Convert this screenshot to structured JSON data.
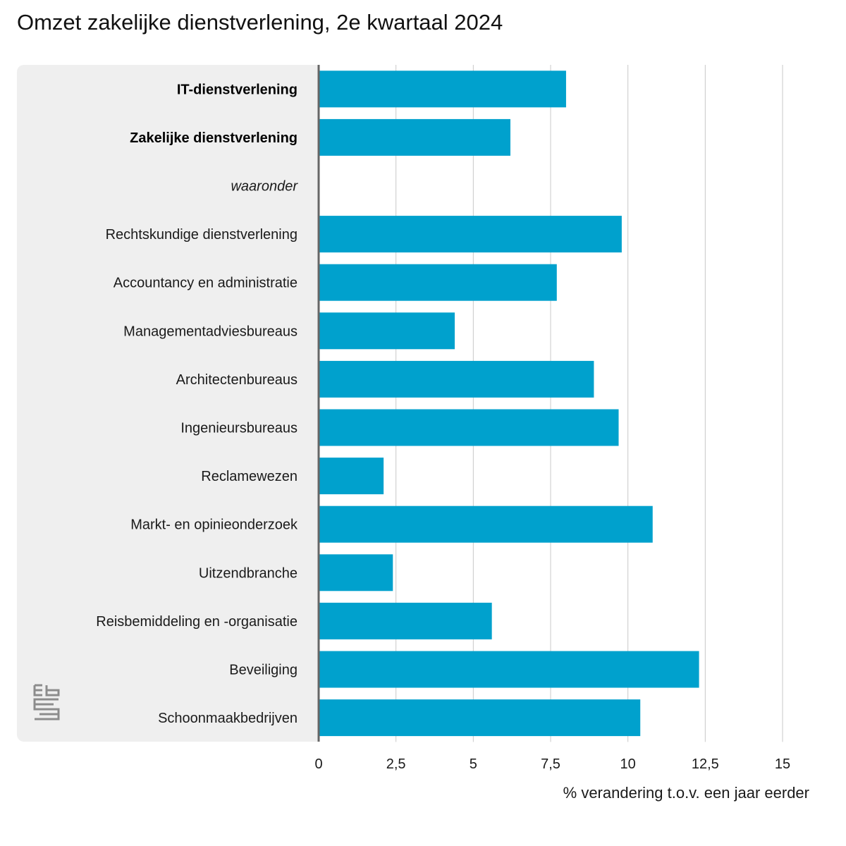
{
  "title": "Omzet zakelijke dienstverlening, 2e kwartaal 2024",
  "colors": {
    "bar": "#00a1cd",
    "panel": "#efefef",
    "grid": "#c8c8c8",
    "axis": "#666666"
  },
  "logo": {
    "icon": "cbs-logo-icon",
    "text": "cbs"
  },
  "chart_data": {
    "type": "bar",
    "orientation": "horizontal",
    "title": "Omzet zakelijke dienstverlening, 2e kwartaal 2024",
    "xlabel": "% verandering t.o.v. een jaar eerder",
    "ylabel": "",
    "xlim": [
      0,
      15
    ],
    "x_ticks": [
      "0",
      "2,5",
      "5",
      "7,5",
      "10",
      "12,5",
      "15"
    ],
    "x_tick_values": [
      0,
      2.5,
      5,
      7.5,
      10,
      12.5,
      15
    ],
    "grid": true,
    "categories": [
      {
        "label": "IT-dienstverlening",
        "value": 8.0,
        "style": "bold"
      },
      {
        "label": "Zakelijke dienstverlening",
        "value": 6.2,
        "style": "bold"
      },
      {
        "label": "waaronder",
        "value": null,
        "style": "italic"
      },
      {
        "label": "Rechtskundige dienstverlening",
        "value": 9.8,
        "style": "normal"
      },
      {
        "label": "Accountancy en administratie",
        "value": 7.7,
        "style": "normal"
      },
      {
        "label": "Managementadviesbureaus",
        "value": 4.4,
        "style": "normal"
      },
      {
        "label": "Architectenbureaus",
        "value": 8.9,
        "style": "normal"
      },
      {
        "label": "Ingenieursbureaus",
        "value": 9.7,
        "style": "normal"
      },
      {
        "label": "Reclamewezen",
        "value": 2.1,
        "style": "normal"
      },
      {
        "label": "Markt- en opinieonderzoek",
        "value": 10.8,
        "style": "normal"
      },
      {
        "label": "Uitzendbranche",
        "value": 2.4,
        "style": "normal"
      },
      {
        "label": "Reisbemiddeling en -organisatie",
        "value": 5.6,
        "style": "normal"
      },
      {
        "label": "Beveiliging",
        "value": 12.3,
        "style": "normal"
      },
      {
        "label": "Schoonmaakbedrijven",
        "value": 10.4,
        "style": "normal"
      }
    ]
  }
}
